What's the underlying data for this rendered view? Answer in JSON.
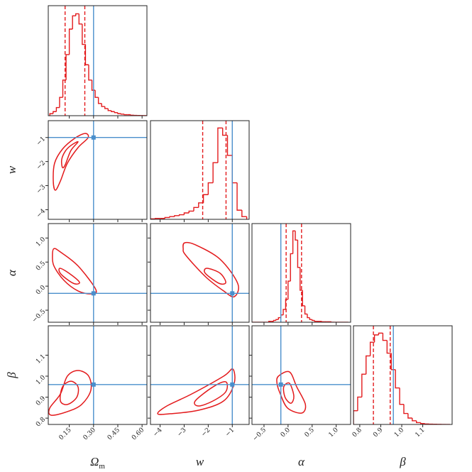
{
  "chart_data": {
    "type": "corner",
    "color": "#e31a1c",
    "truth_color": "#4a8fcc",
    "params": [
      {
        "label": "Ω",
        "label_sub": "m",
        "lim": [
          0.02,
          0.63
        ],
        "ticks": [
          0.15,
          {
            "value": 0.3,
            "label": "0.30"
          },
          0.45,
          {
            "value": 0.6,
            "label": "0.60"
          }
        ],
        "truth": 0.3,
        "quantiles": [
          0.124,
          0.246
        ],
        "bins": [
          0.03,
          0.05,
          0.07,
          0.09,
          0.11,
          0.13,
          0.15,
          0.17,
          0.19,
          0.21,
          0.23,
          0.25,
          0.27,
          0.29,
          0.31,
          0.33,
          0.35,
          0.37,
          0.39,
          0.41,
          0.43,
          0.45,
          0.47,
          0.49,
          0.51,
          0.53,
          0.55,
          0.57,
          0.59,
          0.61,
          0.63
        ],
        "counts": [
          2,
          4,
          8,
          18,
          35,
          60,
          85,
          98,
          100,
          90,
          70,
          50,
          35,
          25,
          18,
          12,
          9,
          7,
          5,
          4,
          3,
          2,
          1.5,
          1,
          1,
          0.5,
          0.3,
          0.2,
          0.1,
          0.1
        ]
      },
      {
        "label": "w",
        "lim": [
          -4.4,
          -0.3
        ],
        "ticks": [
          {
            "value": -4,
            "label": "−4"
          },
          {
            "value": -3,
            "label": "−3"
          },
          {
            "value": -2,
            "label": "−2"
          },
          {
            "value": -1,
            "label": "−1"
          }
        ],
        "truth": -1,
        "quantiles": [
          -2.23,
          -1.26
        ],
        "bins": [
          -4.4,
          -4.2,
          -4,
          -3.8,
          -3.6,
          -3.4,
          -3.2,
          -3,
          -2.8,
          -2.6,
          -2.4,
          -2.2,
          -2,
          -1.8,
          -1.6,
          -1.4,
          -1.2,
          -1,
          -0.8,
          -0.6,
          -0.4
        ],
        "counts": [
          0.5,
          1,
          1,
          2,
          3,
          4,
          5,
          7,
          9,
          13,
          18,
          27,
          40,
          62,
          100,
          92,
          70,
          40,
          10,
          3
        ]
      },
      {
        "label": "α",
        "lim": [
          -0.75,
          1.3
        ],
        "ticks": [
          {
            "value": -0.5,
            "label": "−0.5"
          },
          {
            "value": 0,
            "label": "0.0"
          },
          0.5,
          {
            "value": 1,
            "label": "1.0"
          }
        ],
        "truth": -0.15,
        "quantiles": [
          -0.04,
          0.28
        ],
        "bins": [
          -0.75,
          -0.7,
          -0.65,
          -0.6,
          -0.55,
          -0.5,
          -0.45,
          -0.4,
          -0.35,
          -0.3,
          -0.25,
          -0.2,
          -0.15,
          -0.1,
          -0.05,
          0,
          0.05,
          0.1,
          0.15,
          0.2,
          0.25,
          0.3,
          0.35,
          0.4,
          0.45,
          0.5,
          0.55,
          0.6,
          0.65,
          0.7,
          0.75,
          0.8,
          0.85,
          0.9,
          0.95,
          1,
          1.05,
          1.1,
          1.15,
          1.2,
          1.25
        ],
        "counts": [
          0,
          0,
          0,
          0,
          0,
          0,
          0,
          1,
          1,
          2,
          3,
          5,
          8,
          14,
          25,
          45,
          75,
          100,
          90,
          60,
          35,
          18,
          9,
          5,
          3,
          2,
          1,
          1,
          1,
          0.5,
          0.5,
          0.5,
          0.5,
          0,
          0,
          0,
          0,
          0,
          0,
          0
        ]
      },
      {
        "label": "β",
        "lim": [
          0.77,
          1.24
        ],
        "ticks": [
          0.8,
          0.9,
          {
            "value": 1,
            "label": "1.0"
          },
          1.1
        ],
        "truth": 0.96,
        "quantiles": [
          0.865,
          0.945
        ],
        "bins": [
          0.77,
          0.79,
          0.81,
          0.83,
          0.85,
          0.87,
          0.89,
          0.91,
          0.93,
          0.95,
          0.97,
          0.99,
          1.01,
          1.03,
          1.05,
          1.07,
          1.09,
          1.11,
          1.13,
          1.15,
          1.17,
          1.19,
          1.21,
          1.23
        ],
        "counts": [
          15,
          30,
          55,
          75,
          90,
          98,
          100,
          92,
          78,
          60,
          40,
          22,
          12,
          7,
          4,
          2,
          1,
          0.5,
          0.3,
          0.2,
          0.1,
          0,
          0
        ]
      }
    ],
    "contours": [
      {
        "x_param": 0,
        "y_param": 1,
        "levels": [
          {
            "x": [
              0.248,
              0.266,
              0.204,
              0.138,
              0.095,
              0.064,
              0.051,
              0.059,
              0.108,
              0.182
            ],
            "y": [
              -0.83,
              -1.01,
              -1.42,
              -2.07,
              -2.81,
              -3.19,
              -2.81,
              -2.07,
              -1.48,
              -1.04
            ]
          },
          {
            "x": [
              0.204,
              0.16,
              0.125,
              0.108,
              0.103,
              0.125,
              0.16
            ],
            "y": [
              -1.18,
              -1.54,
              -2.13,
              -2.25,
              -1.92,
              -1.57,
              -1.33
            ]
          }
        ]
      },
      {
        "x_param": 0,
        "y_param": 2,
        "levels": [
          {
            "x": [
              0.055,
              0.095,
              0.204,
              0.314,
              0.283,
              0.204,
              0.117,
              0.055,
              0.046
            ],
            "y": [
              0.78,
              0.71,
              0.42,
              -0.07,
              -0.16,
              -0.1,
              0.12,
              0.42,
              0.64
            ]
          },
          {
            "x": [
              0.095,
              0.16,
              0.213,
              0.182,
              0.125,
              0.09
            ],
            "y": [
              0.37,
              0.24,
              0.08,
              0.05,
              0.17,
              0.29
            ]
          }
        ]
      },
      {
        "x_param": 0,
        "y_param": 3,
        "levels": [
          {
            "x": [
              0.038,
              0.029,
              0.095,
              0.138,
              0.204,
              0.27,
              0.283,
              0.226,
              0.138
            ],
            "y": [
              0.814,
              0.848,
              0.915,
              1,
              1.027,
              1,
              0.932,
              0.865,
              0.831
            ]
          },
          {
            "x": [
              0.095,
              0.108,
              0.16,
              0.204,
              0.195,
              0.138
            ],
            "y": [
              0.882,
              0.949,
              0.976,
              0.949,
              0.898,
              0.865
            ]
          }
        ]
      },
      {
        "x_param": 1,
        "y_param": 2,
        "levels": [
          {
            "x": [
              -2.98,
              -2.54,
              -1.51,
              -0.77,
              -0.92,
              -1.36,
              -2.1,
              -2.93,
              -3.04
            ],
            "y": [
              0.9,
              0.86,
              0.56,
              0.05,
              -0.22,
              -0.1,
              0.19,
              0.64,
              0.78
            ]
          },
          {
            "x": [
              -2.04,
              -1.51,
              -1.27,
              -1.51,
              -1.95,
              -2.16
            ],
            "y": [
              0.37,
              0.27,
              0.08,
              0.05,
              0.19,
              0.3
            ]
          }
        ]
      },
      {
        "x_param": 1,
        "y_param": 3,
        "levels": [
          {
            "x": [
              -4.1,
              -3.72,
              -2.69,
              -1.36,
              -0.98,
              -0.92,
              -1.36,
              -2.39,
              -3.57
            ],
            "y": [
              0.821,
              0.858,
              0.915,
              1,
              1.034,
              0.966,
              0.882,
              0.838,
              0.821
            ]
          },
          {
            "x": [
              -2.54,
              -1.8,
              -1.27,
              -1.27,
              -1.8,
              -2.39
            ],
            "y": [
              0.882,
              0.949,
              0.973,
              0.926,
              0.882,
              0.858
            ]
          }
        ]
      },
      {
        "x_param": 2,
        "y_param": 3,
        "levels": [
          {
            "x": [
              -0.2,
              0.03,
              0.18,
              0.36,
              0.28,
              -0.01,
              -0.16,
              -0.23
            ],
            "y": [
              1,
              1.02,
              0.949,
              0.865,
              0.824,
              0.848,
              0.915,
              0.966
            ]
          },
          {
            "x": [
              -0.09,
              0.03,
              0.12,
              0.06,
              -0.06
            ],
            "y": [
              0.949,
              0.966,
              0.905,
              0.871,
              0.898
            ]
          }
        ]
      }
    ]
  }
}
